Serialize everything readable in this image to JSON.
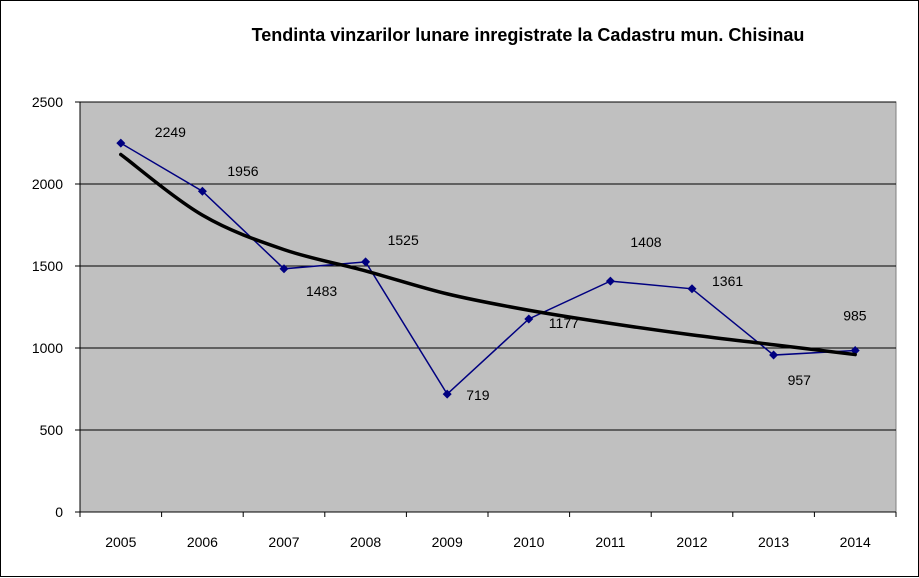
{
  "chart_data": {
    "type": "line",
    "title": "Tendinta vinzarilor lunare inregistrate la Cadastru mun. Chisinau",
    "xlabel": "",
    "ylabel": "",
    "categories": [
      "2005",
      "2006",
      "2007",
      "2008",
      "2009",
      "2010",
      "2011",
      "2012",
      "2013",
      "2014"
    ],
    "series": [
      {
        "values": [
          2249,
          1956,
          1483,
          1525,
          719,
          1177,
          1408,
          1361,
          957,
          985
        ]
      }
    ],
    "trendline": {
      "type": "power",
      "values": [
        2180,
        1810,
        1600,
        1470,
        1330,
        1230,
        1150,
        1080,
        1020,
        960
      ]
    },
    "y_ticks": [
      "0",
      "500",
      "1000",
      "1500",
      "2000",
      "2500"
    ],
    "ylim": [
      0,
      2500
    ],
    "grid": true,
    "legend": "none",
    "colors": {
      "plot_background": "#c0c0c0",
      "series_line": "#000080",
      "trendline": "#000000",
      "gridline": "#000000"
    }
  }
}
